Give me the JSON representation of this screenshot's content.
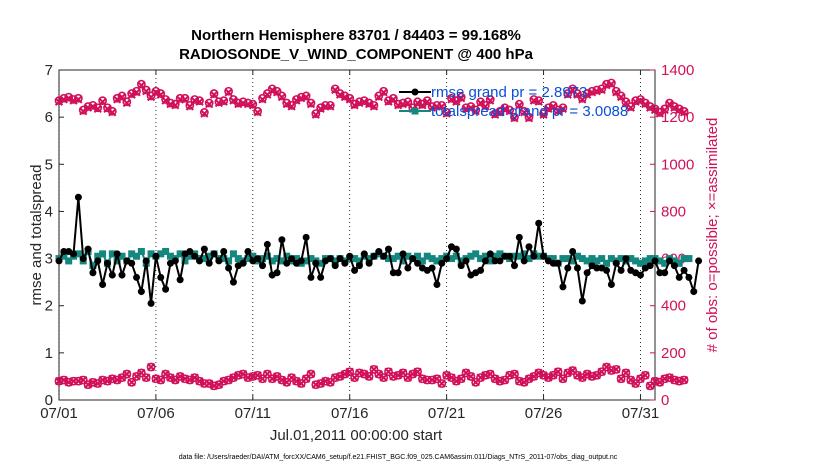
{
  "chart_data": {
    "type": "line",
    "title_line1": "Northern Hemisphere 83701 / 84403 = 99.168%",
    "title_line2": "RADIOSONDE_V_WIND_COMPONENT @ 400 hPa",
    "xlabel": "Jul.01,2011 00:00:00 start",
    "ylabel_left": "rmse and totalspread",
    "ylabel_right": "# of obs: o=possible; ×=assimilated",
    "footnote": "data file: /Users/raeder/DAI/ATM_forcXX/CAM6_setup/f.e21.FHIST_BGC.f09_025.CAM6assim.011/Diags_NTrS_2011-07/obs_diag_output.nc",
    "x_tick_labels": [
      "07/01",
      "07/06",
      "07/11",
      "07/16",
      "07/21",
      "07/26",
      "07/31"
    ],
    "x_tick_values": [
      0,
      5,
      10,
      15,
      20,
      25,
      30
    ],
    "xlim": [
      0,
      30.75
    ],
    "ylim_left": [
      0,
      7
    ],
    "y_ticks_left": [
      "0",
      "1",
      "2",
      "3",
      "4",
      "5",
      "6",
      "7"
    ],
    "ylim_right": [
      0,
      1400
    ],
    "y_ticks_right": [
      "0",
      "200",
      "400",
      "600",
      "800",
      "1000",
      "1200",
      "1400"
    ],
    "legend": [
      "rmse grand pr = 2.8973",
      "totalspread grand pr = 3.0088"
    ],
    "colors": {
      "rmse": "#000000",
      "spread": "#14877f",
      "obs": "#d1105a",
      "legend_text": "#0a4fd9"
    },
    "x_step_days": 0.25,
    "series": [
      {
        "name": "rmse",
        "axis": "left",
        "values": [
          2.95,
          3.15,
          3.15,
          3.1,
          4.3,
          3.0,
          3.2,
          2.7,
          2.95,
          2.45,
          2.9,
          2.65,
          3.1,
          2.65,
          2.95,
          2.9,
          2.6,
          2.3,
          2.95,
          2.05,
          3.05,
          2.6,
          2.35,
          2.9,
          2.95,
          2.55,
          3.1,
          3.15,
          3.05,
          2.95,
          3.2,
          2.9,
          3.1,
          2.95,
          3.15,
          2.8,
          2.5,
          2.85,
          2.9,
          3.15,
          2.95,
          3.0,
          2.85,
          3.3,
          2.65,
          2.7,
          3.4,
          2.9,
          3.0,
          2.9,
          2.95,
          3.45,
          2.6,
          2.9,
          2.6,
          2.95,
          3.0,
          2.85,
          3.0,
          2.9,
          3.05,
          2.75,
          2.85,
          3.1,
          2.9,
          3.05,
          3.15,
          3.05,
          3.2,
          2.7,
          2.7,
          3.1,
          2.8,
          3.0,
          2.9,
          2.8,
          2.75,
          2.8,
          2.45,
          2.9,
          3.0,
          3.25,
          3.2,
          2.85,
          2.95,
          2.65,
          2.7,
          2.75,
          2.95,
          3.1,
          2.95,
          2.95,
          3.05,
          3.05,
          2.85,
          3.45,
          2.95,
          3.25,
          3.05,
          3.75,
          3.05,
          2.95,
          2.9,
          2.9,
          2.4,
          2.8,
          3.15,
          2.8,
          2.1,
          2.7,
          2.85,
          2.8,
          2.8,
          2.75,
          2.45,
          2.9,
          2.75,
          3.0,
          2.75,
          2.7,
          2.65,
          2.8,
          2.85,
          2.95,
          2.7,
          2.7,
          2.95,
          2.85,
          2.6,
          2.75,
          2.6,
          2.3,
          2.95
        ]
      },
      {
        "name": "totalspread",
        "axis": "left",
        "values": [
          3.0,
          3.05,
          2.95,
          3.05,
          3.1,
          2.95,
          3.15,
          2.85,
          3.05,
          3.1,
          2.9,
          3.1,
          2.95,
          3.05,
          2.95,
          3.1,
          3.05,
          3.15,
          2.9,
          3.1,
          3.05,
          3.1,
          3.15,
          3.05,
          3.0,
          3.1,
          2.95,
          3.05,
          3.1,
          3.0,
          3.0,
          3.05,
          3.1,
          3.0,
          3.0,
          2.95,
          3.1,
          3.0,
          2.95,
          3.0,
          3.05,
          2.95,
          3.0,
          3.05,
          2.95,
          3.0,
          2.95,
          3.05,
          2.95,
          3.0,
          2.9,
          2.95,
          3.0,
          2.95,
          2.9,
          3.0,
          3.0,
          2.95,
          3.0,
          2.95,
          3.0,
          3.0,
          2.95,
          3.05,
          3.0,
          3.05,
          3.1,
          3.05,
          3.0,
          3.0,
          3.05,
          2.95,
          3.05,
          3.0,
          3.05,
          2.95,
          3.05,
          3.0,
          2.95,
          3.0,
          3.05,
          3.0,
          3.05,
          2.95,
          3.0,
          3.05,
          3.1,
          3.0,
          3.05,
          2.95,
          3.05,
          3.1,
          3.05,
          3.0,
          3.05,
          3.05,
          3.1,
          3.0,
          3.1,
          3.05,
          3.05,
          3.0,
          3.0,
          2.9,
          3.0,
          3.0,
          2.95,
          3.05,
          3.0,
          2.95,
          3.0,
          2.95,
          3.0,
          2.9,
          3.0,
          2.95,
          3.0,
          2.95,
          3.0,
          2.95,
          2.9,
          2.95,
          3.0,
          3.0,
          2.95,
          2.9,
          3.0,
          2.95,
          2.9,
          3.0,
          3.0
        ]
      },
      {
        "name": "obs_possible",
        "axis": "right",
        "values": [
          1270,
          1280,
          1285,
          1275,
          1280,
          1230,
          1245,
          1250,
          1240,
          1270,
          1240,
          1225,
          1280,
          1290,
          1265,
          1300,
          1310,
          1340,
          1315,
          1290,
          1310,
          1300,
          1275,
          1260,
          1255,
          1280,
          1280,
          1250,
          1275,
          1270,
          1220,
          1260,
          1300,
          1265,
          1270,
          1310,
          1275,
          1260,
          1265,
          1260,
          1255,
          1225,
          1280,
          1300,
          1320,
          1310,
          1290,
          1260,
          1250,
          1275,
          1285,
          1290,
          1260,
          1215,
          1240,
          1250,
          1250,
          1320,
          1300,
          1290,
          1280,
          1255,
          1265,
          1270,
          1260,
          1250,
          1290,
          1310,
          1270,
          1280,
          1255,
          1260,
          1265,
          1240,
          1265,
          1255,
          1270,
          1245,
          1250,
          1250,
          1220,
          1280,
          1270,
          1285,
          1240,
          1245,
          1230,
          1265,
          1250,
          1275,
          1215,
          1225,
          1240,
          1230,
          1200,
          1255,
          1225,
          1200,
          1275,
          1270,
          1215,
          1240,
          1250,
          1230,
          1240,
          1300,
          1320,
          1300,
          1280,
          1300,
          1310,
          1315,
          1320,
          1340,
          1345,
          1310,
          1290,
          1265,
          1245,
          1270,
          1275,
          1260,
          1245,
          1235,
          1220,
          1235,
          1260,
          1245,
          1235,
          1225
        ]
      },
      {
        "name": "obs_assimilated",
        "axis": "right",
        "values": [
          1265,
          1275,
          1280,
          1270,
          1275,
          1225,
          1240,
          1245,
          1235,
          1265,
          1235,
          1220,
          1275,
          1285,
          1260,
          1295,
          1305,
          1335,
          1310,
          1285,
          1305,
          1295,
          1270,
          1255,
          1250,
          1275,
          1275,
          1245,
          1270,
          1265,
          1215,
          1255,
          1295,
          1260,
          1265,
          1305,
          1270,
          1255,
          1260,
          1255,
          1250,
          1220,
          1275,
          1295,
          1315,
          1305,
          1285,
          1255,
          1245,
          1270,
          1280,
          1285,
          1255,
          1210,
          1235,
          1245,
          1245,
          1315,
          1295,
          1285,
          1275,
          1250,
          1260,
          1265,
          1255,
          1245,
          1285,
          1305,
          1265,
          1275,
          1250,
          1255,
          1260,
          1235,
          1260,
          1250,
          1265,
          1240,
          1245,
          1245,
          1215,
          1275,
          1265,
          1280,
          1235,
          1240,
          1225,
          1260,
          1245,
          1270,
          1210,
          1220,
          1235,
          1225,
          1195,
          1250,
          1220,
          1195,
          1270,
          1265,
          1210,
          1235,
          1245,
          1225,
          1235,
          1295,
          1315,
          1295,
          1275,
          1295,
          1305,
          1310,
          1315,
          1335,
          1340,
          1305,
          1285,
          1260,
          1240,
          1265,
          1270,
          1255,
          1240,
          1230,
          1215,
          1230,
          1255,
          1240,
          1230,
          1220
        ]
      },
      {
        "name": "obs_bottom",
        "axis": "right",
        "values": [
          80,
          85,
          75,
          80,
          80,
          85,
          65,
          75,
          70,
          85,
          80,
          90,
          85,
          95,
          110,
          75,
          100,
          115,
          95,
          140,
          90,
          85,
          110,
          95,
          85,
          100,
          90,
          85,
          95,
          80,
          70,
          70,
          60,
          65,
          80,
          85,
          95,
          105,
          110,
          95,
          100,
          105,
          90,
          110,
          90,
          100,
          85,
          75,
          95,
          80,
          70,
          90,
          110,
          65,
          70,
          80,
          75,
          95,
          100,
          110,
          120,
          95,
          115,
          110,
          100,
          130,
          110,
          95,
          120,
          100,
          105,
          115,
          95,
          110,
          120,
          90,
          85,
          85,
          90,
          70,
          105,
          95,
          80,
          90,
          115,
          100,
          75,
          95,
          105,
          110,
          90,
          80,
          85,
          105,
          110,
          80,
          75,
          90,
          100,
          115,
          105,
          95,
          105,
          120,
          90,
          115,
          125,
          105,
          95,
          110,
          100,
          105,
          120,
          140,
          125,
          130,
          90,
          115,
          85,
          70,
          90,
          105,
          60,
          80,
          75,
          90,
          95,
          85,
          80,
          85
        ]
      }
    ]
  }
}
